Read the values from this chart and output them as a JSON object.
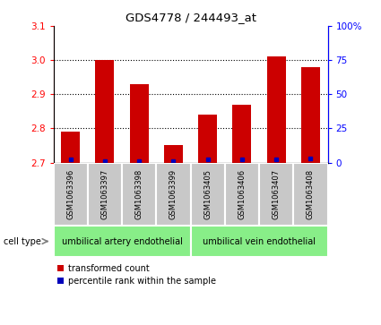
{
  "title": "GDS4778 / 244493_at",
  "samples": [
    "GSM1063396",
    "GSM1063397",
    "GSM1063398",
    "GSM1063399",
    "GSM1063405",
    "GSM1063406",
    "GSM1063407",
    "GSM1063408"
  ],
  "transformed_counts": [
    2.79,
    3.0,
    2.93,
    2.75,
    2.84,
    2.87,
    3.01,
    2.98
  ],
  "percentile_ranks": [
    2,
    1,
    1,
    1,
    2,
    2,
    2,
    3
  ],
  "ylim_left": [
    2.7,
    3.1
  ],
  "ylim_right": [
    0,
    100
  ],
  "yticks_left": [
    2.7,
    2.8,
    2.9,
    3.0,
    3.1
  ],
  "yticks_right": [
    0,
    25,
    50,
    75,
    100
  ],
  "yticklabels_right": [
    "0",
    "25",
    "50",
    "75",
    "100%"
  ],
  "bar_color": "#cc0000",
  "percentile_color": "#0000bb",
  "group1_label": "umbilical artery endothelial",
  "group2_label": "umbilical vein endothelial",
  "group1_indices": [
    0,
    1,
    2,
    3
  ],
  "group2_indices": [
    4,
    5,
    6,
    7
  ],
  "group_bg_color": "#88ee88",
  "tick_label_bg": "#c8c8c8",
  "legend_red_label": "transformed count",
  "legend_blue_label": "percentile rank within the sample",
  "cell_type_label": "cell type"
}
